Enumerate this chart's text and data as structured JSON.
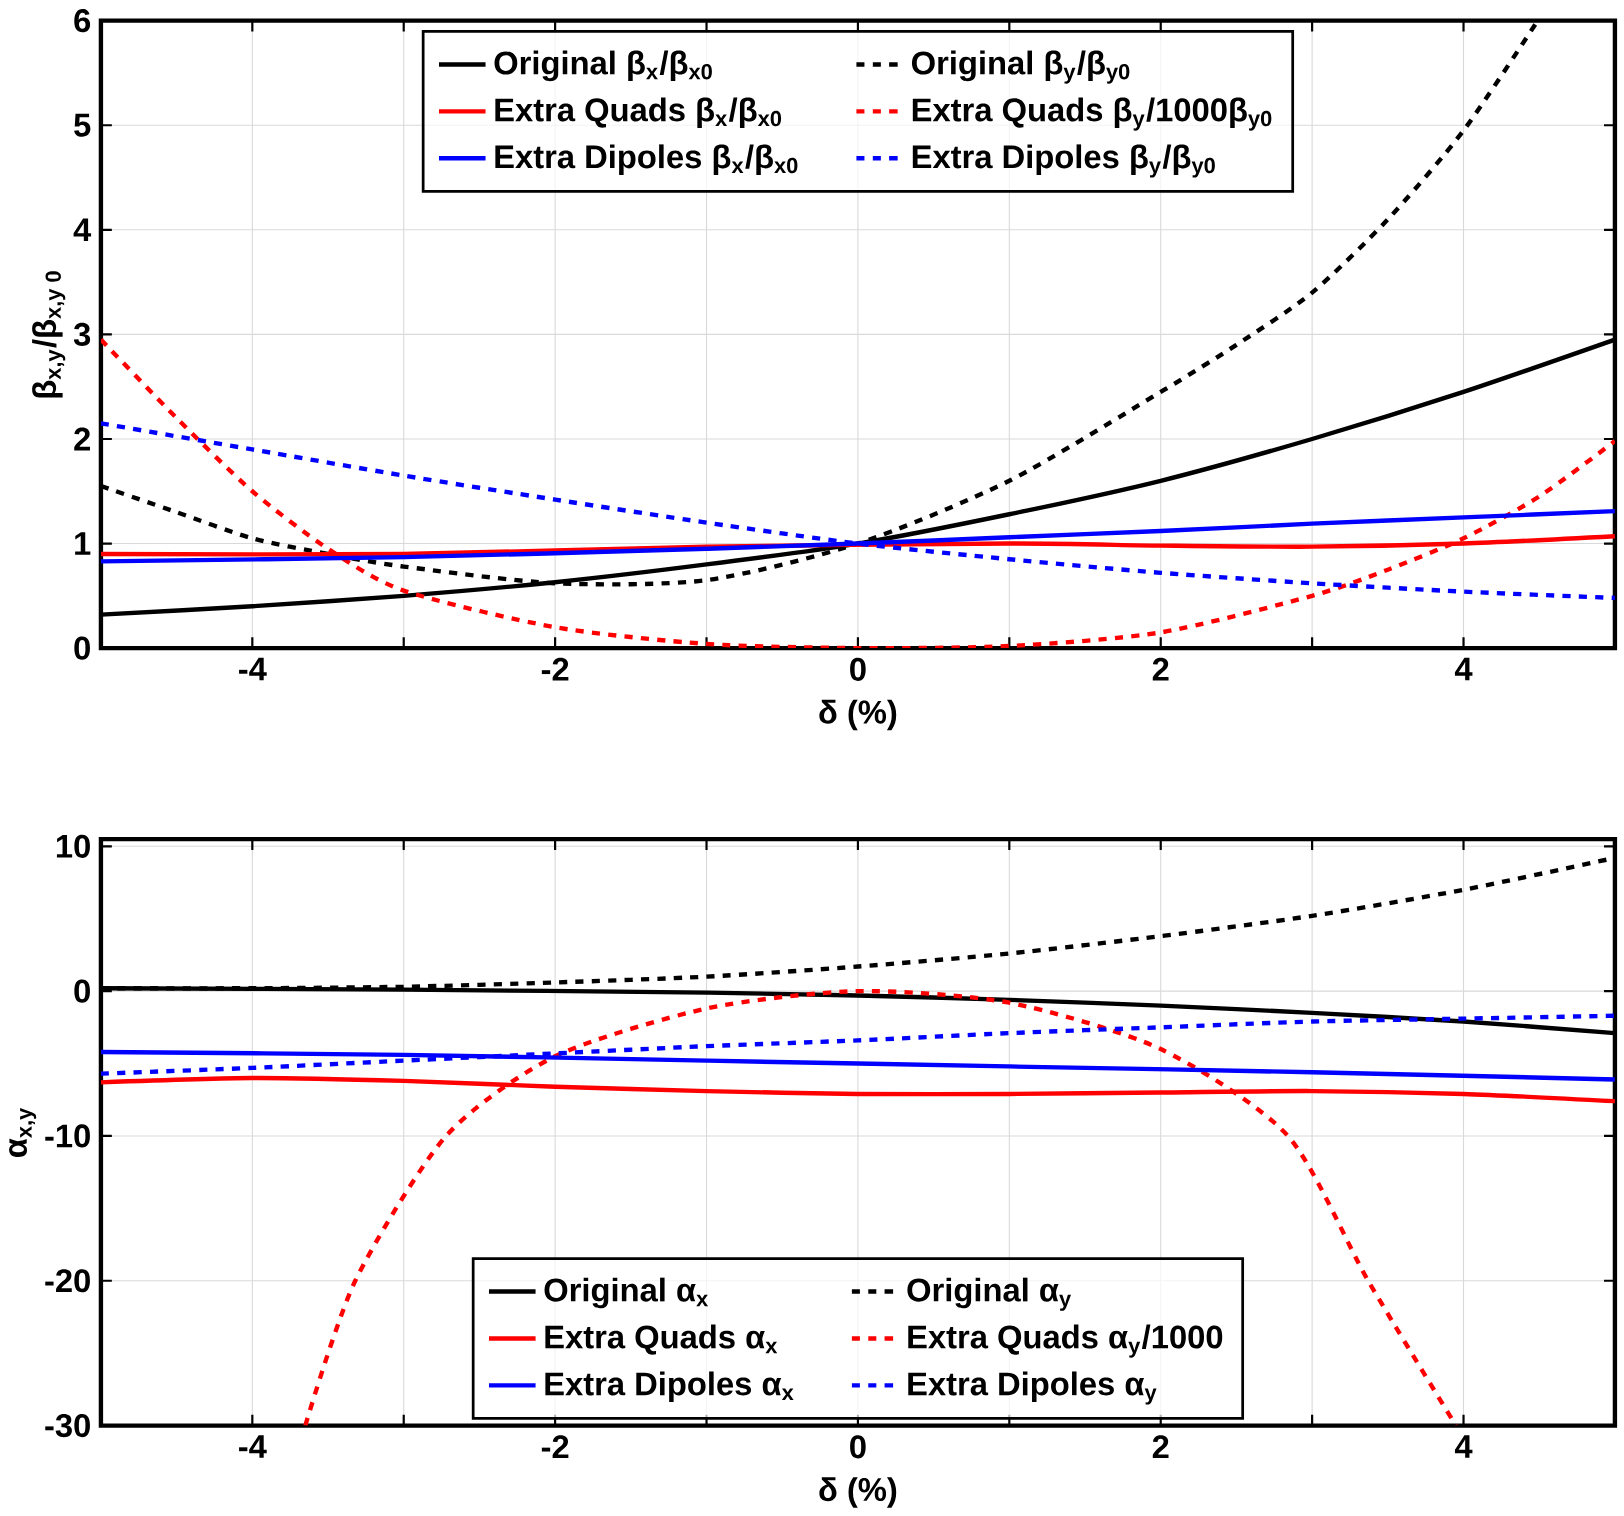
{
  "chart_data": [
    {
      "type": "line",
      "xlabel": "δ (%)",
      "ylabel": "β$_{x,y}$/β$_{x,y 0}$",
      "xlim": [
        -5,
        5
      ],
      "ylim": [
        0,
        6
      ],
      "xticks": [
        {
          "value": -5,
          "label": null
        },
        -4,
        {
          "value": -3,
          "label": null
        },
        -2,
        {
          "value": -1,
          "label": null
        },
        0,
        {
          "value": 1,
          "label": null
        },
        2,
        {
          "value": 3,
          "label": null
        },
        4,
        {
          "value": 5,
          "label": null
        }
      ],
      "yticks": [
        0,
        1,
        2,
        3,
        4,
        5,
        6
      ],
      "grid": true,
      "legend": "top",
      "series": [
        {
          "name": "Original β$_{x}$/β$_{x0}$",
          "color": "#000000",
          "line_style": "solid",
          "x": [
            -5,
            -4,
            -3,
            -2,
            -1,
            0,
            1,
            2,
            3,
            4,
            5
          ],
          "values": [
            0.32,
            0.4,
            0.5,
            0.63,
            0.8,
            1.0,
            1.28,
            1.6,
            2.0,
            2.45,
            2.95
          ]
        },
        {
          "name": "Original β$_{y}$/β$_{y0}$",
          "color": "#000000",
          "line_style": "dashed",
          "x": [
            -5,
            -4.5,
            -4,
            -3.5,
            -3,
            -2,
            -1,
            0,
            1,
            2,
            2.5,
            3,
            3.5,
            4,
            4.49
          ],
          "values": [
            1.55,
            1.3,
            1.05,
            0.9,
            0.78,
            0.62,
            0.65,
            1.0,
            1.6,
            2.45,
            2.9,
            3.4,
            4.1,
            4.95,
            6.0
          ]
        },
        {
          "name": "Extra Quads β$_{x}$/β$_{x0}$",
          "color": "#ff0000",
          "line_style": "solid",
          "x": [
            -5,
            -3,
            -1,
            1,
            2,
            3,
            4,
            5
          ],
          "values": [
            0.9,
            0.9,
            0.97,
            1.0,
            0.98,
            0.97,
            1.0,
            1.07
          ]
        },
        {
          "name": "Extra Quads β$_{y}$/1000β$_{y0}$",
          "color": "#ff0000",
          "line_style": "dashed",
          "x": [
            -5,
            -4.5,
            -4,
            -3.5,
            -3,
            -2,
            -1,
            0,
            1,
            2,
            3,
            3.5,
            4,
            4.5,
            5
          ],
          "values": [
            2.95,
            2.2,
            1.5,
            0.95,
            0.55,
            0.2,
            0.04,
            0.0,
            0.02,
            0.15,
            0.5,
            0.75,
            1.05,
            1.45,
            1.98
          ]
        },
        {
          "name": "Extra Dipoles β$_{x}$/β$_{x0}$",
          "color": "#0000ff",
          "line_style": "solid",
          "x": [
            -5,
            -3,
            -1,
            0,
            1,
            2,
            3,
            4,
            5
          ],
          "values": [
            0.83,
            0.87,
            0.95,
            1.0,
            1.06,
            1.12,
            1.19,
            1.25,
            1.31
          ]
        },
        {
          "name": "Extra Dipoles β$_{y}$/β$_{y0}$",
          "color": "#0000ff",
          "line_style": "dashed",
          "x": [
            -5,
            -4,
            -3,
            -2,
            -1,
            0,
            1,
            2,
            3,
            4,
            5
          ],
          "values": [
            2.15,
            1.9,
            1.65,
            1.42,
            1.2,
            1.0,
            0.85,
            0.72,
            0.62,
            0.54,
            0.48
          ]
        }
      ]
    },
    {
      "type": "line",
      "xlabel": "δ (%)",
      "ylabel": "α$_{x,y}$",
      "xlim": [
        -5,
        5
      ],
      "ylim": [
        -30,
        10.5
      ],
      "xticks": [
        {
          "value": -5,
          "label": null
        },
        -4,
        {
          "value": -3,
          "label": null
        },
        -2,
        {
          "value": -1,
          "label": null
        },
        0,
        {
          "value": 1,
          "label": null
        },
        2,
        {
          "value": 3,
          "label": null
        },
        4,
        {
          "value": 5,
          "label": null
        }
      ],
      "yticks": [
        -30,
        -20,
        -10,
        0,
        10
      ],
      "grid": true,
      "legend": "bottom",
      "series": [
        {
          "name": "Original α$_{x}$",
          "color": "#000000",
          "line_style": "solid",
          "x": [
            -5,
            -3,
            -1,
            0,
            1,
            2,
            3,
            4,
            5
          ],
          "values": [
            0.2,
            0.1,
            -0.1,
            -0.3,
            -0.6,
            -1.0,
            -1.5,
            -2.1,
            -2.9
          ]
        },
        {
          "name": "Original α$_{y}$",
          "color": "#000000",
          "line_style": "dashed",
          "x": [
            -5,
            -4,
            -3,
            -2,
            -1,
            0,
            1,
            2,
            3,
            4,
            5
          ],
          "values": [
            0.2,
            0.2,
            0.3,
            0.6,
            1.0,
            1.7,
            2.6,
            3.8,
            5.2,
            7.0,
            9.2
          ]
        },
        {
          "name": "Extra Quads α$_{x}$",
          "color": "#ff0000",
          "line_style": "solid",
          "x": [
            -5,
            -4,
            -3,
            -2,
            -1,
            0,
            1,
            2,
            3,
            4,
            5
          ],
          "values": [
            -6.3,
            -6.0,
            -6.2,
            -6.6,
            -6.9,
            -7.1,
            -7.1,
            -7.0,
            -6.9,
            -7.1,
            -7.6
          ]
        },
        {
          "name": "Extra Quads α$_{y}$/1000",
          "color": "#ff0000",
          "line_style": "dashed",
          "x": [
            -3.65,
            -3.32,
            -2.72,
            -2,
            -1,
            0,
            1,
            2,
            2.84,
            3.37,
            3.95
          ],
          "values": [
            -30,
            -20,
            -10,
            -4.5,
            -1.2,
            0,
            -0.8,
            -4,
            -10,
            -20,
            -30
          ]
        },
        {
          "name": "Extra Dipoles α$_{x}$",
          "color": "#0000ff",
          "line_style": "solid",
          "x": [
            -5,
            -3,
            -1,
            0,
            1,
            3,
            5
          ],
          "values": [
            -4.2,
            -4.4,
            -4.8,
            -5.0,
            -5.2,
            -5.6,
            -6.1
          ]
        },
        {
          "name": "Extra Dipoles α$_{y}$",
          "color": "#0000ff",
          "line_style": "dashed",
          "x": [
            -5,
            -4,
            -3,
            -2,
            -1,
            0,
            1,
            2,
            3,
            4,
            5
          ],
          "values": [
            -5.7,
            -5.3,
            -4.8,
            -4.3,
            -3.8,
            -3.4,
            -2.9,
            -2.5,
            -2.1,
            -1.9,
            -1.7
          ]
        }
      ]
    }
  ]
}
